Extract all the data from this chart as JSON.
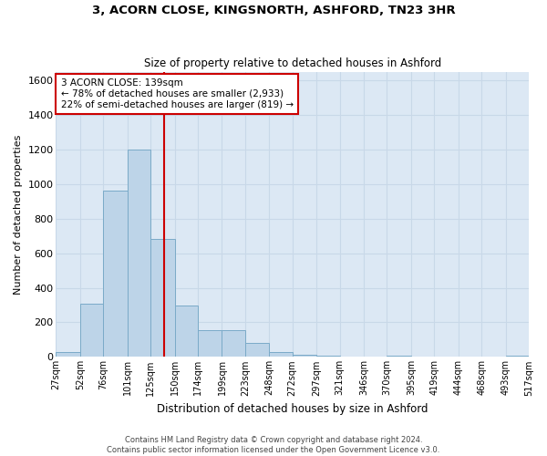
{
  "title1": "3, ACORN CLOSE, KINGSNORTH, ASHFORD, TN23 3HR",
  "title2": "Size of property relative to detached houses in Ashford",
  "xlabel": "Distribution of detached houses by size in Ashford",
  "ylabel": "Number of detached properties",
  "footer1": "Contains HM Land Registry data © Crown copyright and database right 2024.",
  "footer2": "Contains public sector information licensed under the Open Government Licence v3.0.",
  "annotation_line1": "3 ACORN CLOSE: 139sqm",
  "annotation_line2": "← 78% of detached houses are smaller (2,933)",
  "annotation_line3": "22% of semi-detached houses are larger (819) →",
  "bar_color": "#bdd4e8",
  "bar_edge_color": "#7aaac8",
  "grid_color": "#c8d8e8",
  "background_color": "#dce8f4",
  "vline_color": "#cc0000",
  "vline_x": 139,
  "ylim": [
    0,
    1650
  ],
  "yticks": [
    0,
    200,
    400,
    600,
    800,
    1000,
    1200,
    1400,
    1600
  ],
  "bin_edges": [
    27,
    52,
    76,
    101,
    125,
    150,
    174,
    199,
    223,
    248,
    272,
    297,
    321,
    346,
    370,
    395,
    419,
    444,
    468,
    493,
    517
  ],
  "bar_heights": [
    30,
    310,
    960,
    1200,
    680,
    300,
    155,
    155,
    80,
    30,
    10,
    5,
    0,
    0,
    5,
    0,
    0,
    0,
    0,
    5
  ]
}
